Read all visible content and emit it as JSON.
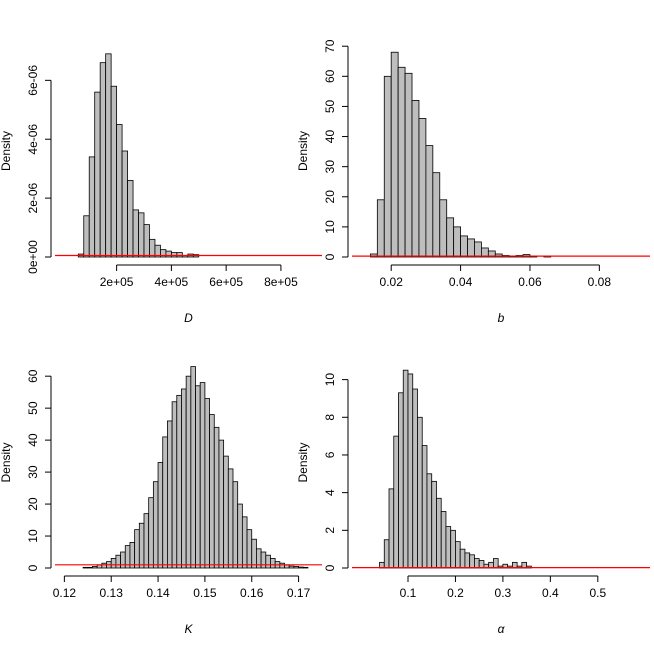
{
  "chart_data": [
    {
      "type": "histogram",
      "xlabel": "D",
      "ylabel": "Density",
      "color": "#bebebe",
      "bins": [
        60000,
        80000,
        100000,
        120000,
        140000,
        160000,
        180000,
        200000,
        220000,
        240000,
        260000,
        280000,
        300000,
        320000,
        340000,
        360000,
        380000,
        400000,
        420000,
        440000,
        460000,
        480000,
        500000
      ],
      "values": [
        1e-07,
        1.4e-06,
        3.4e-06,
        5.6e-06,
        6.6e-06,
        6.9e-06,
        5.8e-06,
        4.5e-06,
        3.6e-06,
        2.6e-06,
        1.6e-06,
        1.5e-06,
        1.1e-06,
        6e-07,
        4e-07,
        2.5e-07,
        2e-07,
        1.5e-07,
        1.5e-07,
        5e-08,
        1e-07,
        8e-08
      ],
      "xlim": [
        -25000,
        950000
      ],
      "ylim": [
        0,
        7.2e-06
      ],
      "xticks": [
        {
          "value": 200000,
          "label": "2e+05"
        },
        {
          "value": 400000,
          "label": "4e+05"
        },
        {
          "value": 600000,
          "label": "6e+05"
        },
        {
          "value": 800000,
          "label": "8e+05"
        }
      ],
      "yticks": [
        {
          "value": 0,
          "label": "0e+00"
        },
        {
          "value": 2e-06,
          "label": "2e-06"
        },
        {
          "value": 4e-06,
          "label": "4e-06"
        },
        {
          "value": 6e-06,
          "label": "6e-06"
        }
      ],
      "reference_line": {
        "value": 5e-08,
        "color": "#ff0000"
      }
    },
    {
      "type": "histogram",
      "xlabel": "b",
      "ylabel": "Density",
      "color": "#bebebe",
      "bins": [
        0.014,
        0.016,
        0.018,
        0.02,
        0.022,
        0.024,
        0.026,
        0.028,
        0.03,
        0.032,
        0.034,
        0.036,
        0.038,
        0.04,
        0.042,
        0.044,
        0.046,
        0.048,
        0.05,
        0.052,
        0.054,
        0.056,
        0.058,
        0.06,
        0.062,
        0.064,
        0.066
      ],
      "values": [
        1,
        19,
        60,
        68,
        63,
        61,
        52,
        46,
        37,
        28,
        19,
        13,
        10,
        7,
        6,
        5,
        3,
        2,
        1,
        0.5,
        0.2,
        0.5,
        0.8,
        0.2,
        0,
        0.3
      ],
      "xlim": [
        0.0087,
        0.0946
      ],
      "ylim": [
        0,
        70.4
      ],
      "xticks": [
        0.02,
        0.04,
        0.06,
        0.08
      ],
      "yticks": [
        0,
        10,
        20,
        30,
        40,
        50,
        60,
        70
      ],
      "reference_line": {
        "value": 0.3,
        "color": "#ff0000"
      }
    },
    {
      "type": "histogram",
      "xlabel": "K",
      "ylabel": "Density",
      "color": "#bebebe",
      "bins": [
        0.124,
        0.125,
        0.126,
        0.127,
        0.128,
        0.129,
        0.13,
        0.131,
        0.132,
        0.133,
        0.134,
        0.135,
        0.136,
        0.137,
        0.138,
        0.139,
        0.14,
        0.141,
        0.142,
        0.143,
        0.144,
        0.145,
        0.146,
        0.147,
        0.148,
        0.149,
        0.15,
        0.151,
        0.152,
        0.153,
        0.154,
        0.155,
        0.156,
        0.157,
        0.158,
        0.159,
        0.16,
        0.161,
        0.162,
        0.163,
        0.164,
        0.165,
        0.166,
        0.167,
        0.168,
        0.169,
        0.17,
        0.171,
        0.172
      ],
      "values": [
        0.2,
        0.2,
        0.5,
        1,
        1.5,
        2,
        3,
        4,
        5,
        7,
        8,
        12,
        14,
        17,
        22,
        27,
        33,
        41,
        46,
        52,
        54,
        56,
        60,
        63,
        57,
        58,
        53,
        48,
        44,
        40,
        35,
        31,
        27,
        20,
        16,
        12,
        9,
        6,
        5,
        4,
        3,
        2,
        1.5,
        1,
        0.6,
        0.5,
        0.3,
        0.2
      ],
      "xlim": [
        0.118,
        0.175
      ],
      "ylim": [
        0,
        66
      ],
      "xticks": [
        0.12,
        0.13,
        0.14,
        0.15,
        0.16,
        0.17
      ],
      "yticks": [
        0,
        10,
        20,
        30,
        40,
        50,
        60
      ],
      "reference_line": {
        "value": 1,
        "color": "#ff0000"
      }
    },
    {
      "type": "histogram",
      "xlabel": "α",
      "ylabel": "Density",
      "color": "#bebebe",
      "bins": [
        0.04,
        0.05,
        0.06,
        0.07,
        0.08,
        0.09,
        0.1,
        0.11,
        0.12,
        0.13,
        0.14,
        0.15,
        0.16,
        0.17,
        0.18,
        0.19,
        0.2,
        0.21,
        0.22,
        0.23,
        0.24,
        0.25,
        0.26,
        0.27,
        0.28,
        0.29,
        0.3,
        0.31,
        0.32,
        0.33,
        0.34,
        0.35,
        0.36
      ],
      "values": [
        0.3,
        1.5,
        4.2,
        7,
        9.3,
        10.5,
        10.3,
        9.5,
        8,
        6.5,
        5,
        4.6,
        3.7,
        3,
        2.2,
        2,
        1.4,
        1,
        0.8,
        0.7,
        0.5,
        0.4,
        0.2,
        0.3,
        0.5,
        0.1,
        0.2,
        0.1,
        0.3,
        0.1,
        0.3,
        0.1
      ],
      "xlim": [
        -0.018,
        0.61
      ],
      "ylim": [
        0,
        11.2
      ],
      "xticks": [
        0.1,
        0.2,
        0.3,
        0.4,
        0.5
      ],
      "yticks": [
        0,
        2,
        4,
        6,
        8,
        10
      ],
      "reference_line": {
        "value": 0.02,
        "color": "#ff0000"
      }
    }
  ]
}
